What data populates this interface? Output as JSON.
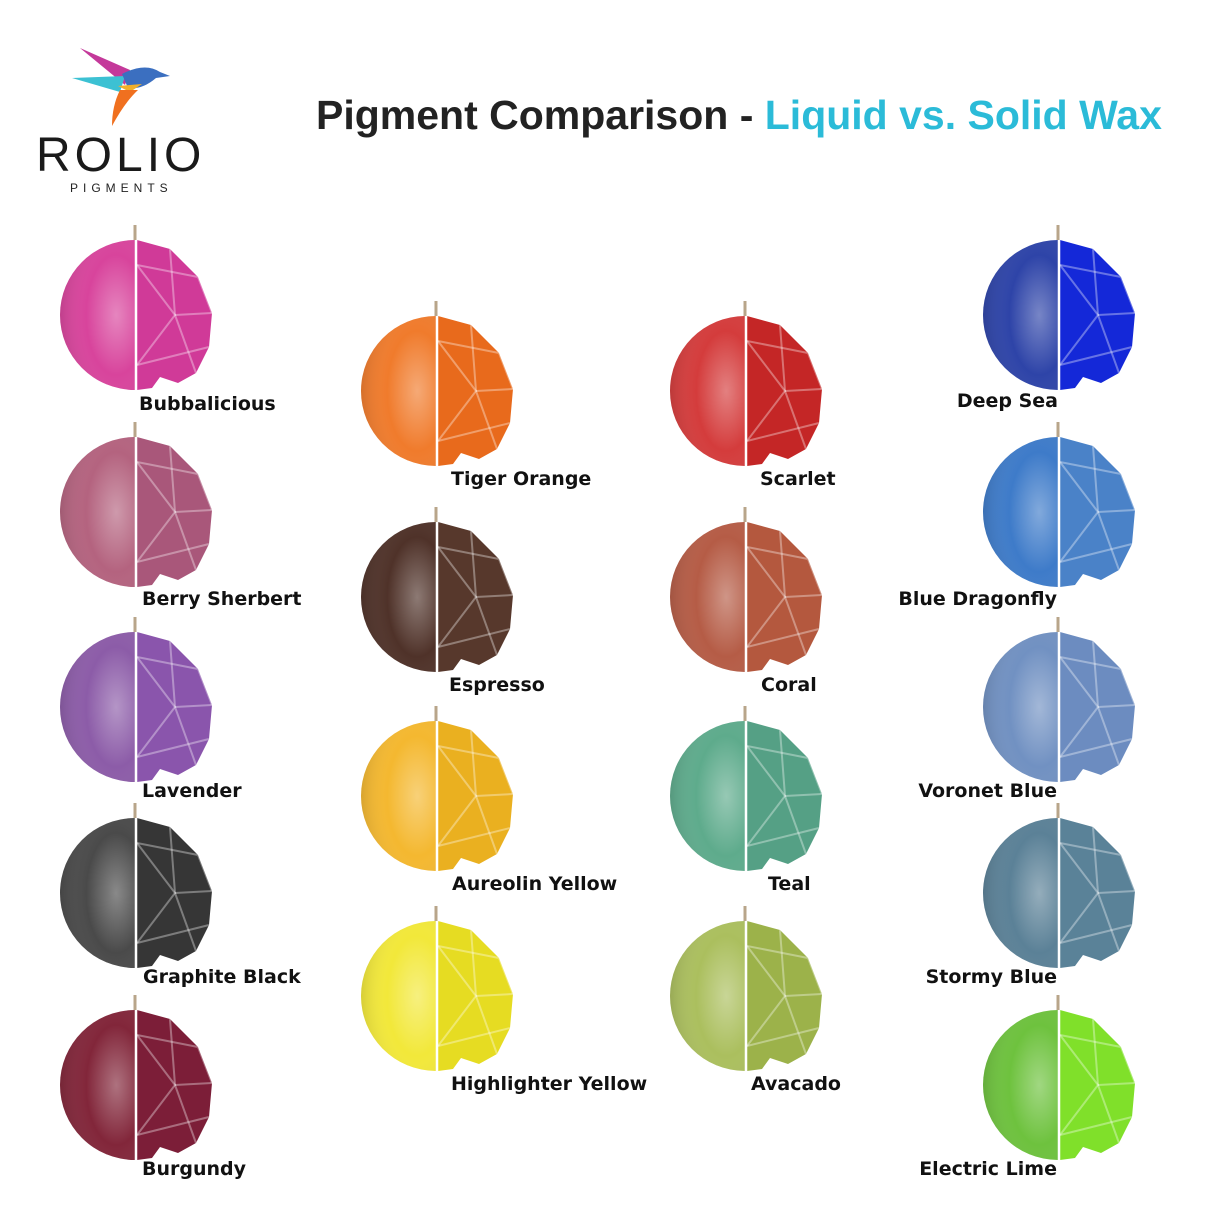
{
  "logo": {
    "brand": "ROLIO",
    "sub": "PIGMENTS"
  },
  "title": {
    "main": "Pigment Comparison - ",
    "highlight": "Liquid vs. Solid Wax"
  },
  "swatches": [
    {
      "name": "Bubbalicious",
      "liquid": "#d8449c",
      "solid": "#d03a98"
    },
    {
      "name": "Berry Sherbert",
      "liquid": "#b4637f",
      "solid": "#a9577a"
    },
    {
      "name": "Lavender",
      "liquid": "#8c5ca8",
      "solid": "#8a55ac"
    },
    {
      "name": "Graphite Black",
      "liquid": "#4a4a4a",
      "solid": "#363636"
    },
    {
      "name": "Burgundy",
      "liquid": "#82263a",
      "solid": "#7c1e38"
    },
    {
      "name": "Tiger Orange",
      "liquid": "#f07b2c",
      "solid": "#e86a1c"
    },
    {
      "name": "Espresso",
      "liquid": "#4f3229",
      "solid": "#57382c"
    },
    {
      "name": "Aureolin Yellow",
      "liquid": "#f4b830",
      "solid": "#eab020"
    },
    {
      "name": "Highlighter Yellow",
      "liquid": "#f2e83a",
      "solid": "#e6dc22"
    },
    {
      "name": "Scarlet",
      "liquid": "#d43c3c",
      "solid": "#c42626"
    },
    {
      "name": "Coral",
      "liquid": "#b55c46",
      "solid": "#b4583e"
    },
    {
      "name": "Teal",
      "liquid": "#5eab8c",
      "solid": "#55a085"
    },
    {
      "name": "Avacado",
      "liquid": "#abbf5e",
      "solid": "#9cb24a"
    },
    {
      "name": "Deep Sea",
      "liquid": "#2e44a8",
      "solid": "#1428d8"
    },
    {
      "name": "Blue Dragonfly",
      "liquid": "#3e7bc9",
      "solid": "#4a82c8"
    },
    {
      "name": "Voronet Blue",
      "liquid": "#7191c2",
      "solid": "#6c8cc0"
    },
    {
      "name": "Stormy Blue",
      "liquid": "#5b8197",
      "solid": "#5a8298"
    },
    {
      "name": "Electric Lime",
      "liquid": "#6ec23e",
      "solid": "#80e02a"
    }
  ]
}
